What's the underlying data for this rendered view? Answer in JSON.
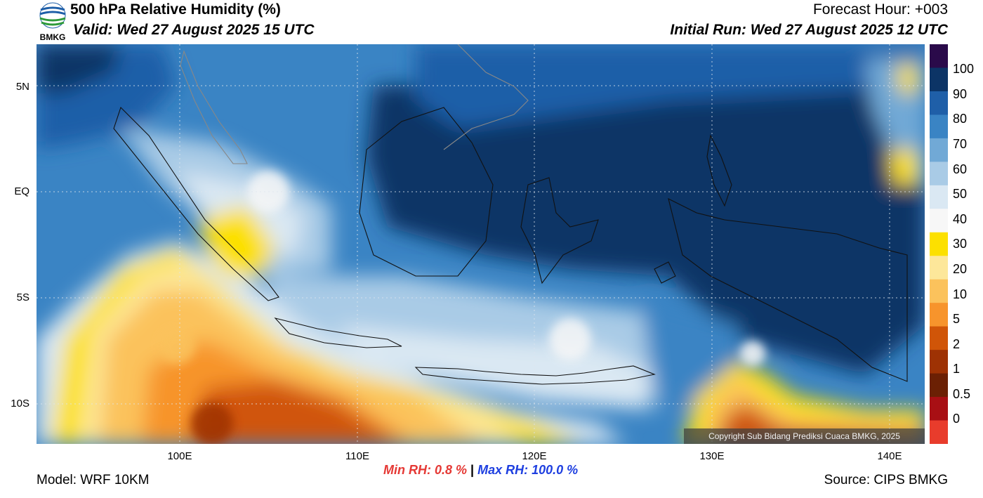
{
  "header": {
    "title": "500 hPa Relative Humidity (%)",
    "valid": "Valid: Wed 27 August 2025 15 UTC",
    "forecast_hour": "Forecast Hour: +003",
    "initial_run": "Initial Run: Wed 27 August 2025 12 UTC"
  },
  "logo": {
    "text": "BMKG",
    "icon": "bmkg-logo-icon"
  },
  "map": {
    "lat_labels": [
      "5N",
      "EQ",
      "5S",
      "10S"
    ],
    "lon_labels": [
      "100E",
      "110E",
      "120E",
      "130E",
      "140E"
    ],
    "copyright": "Copyright Sub Bidang Prediksi Cuaca BMKG, 2025"
  },
  "colorbar": {
    "labels": [
      "100",
      "90",
      "80",
      "70",
      "60",
      "50",
      "40",
      "30",
      "20",
      "10",
      "5",
      "2",
      "1",
      "0.5",
      "0"
    ],
    "colors": [
      "#2a0a4a",
      "#0c3466",
      "#1f5fa8",
      "#3a84c4",
      "#71a9d6",
      "#a9cbe6",
      "#dae8f3",
      "#f7f7f7",
      "#fce000",
      "#fde79a",
      "#fbc25c",
      "#f7942c",
      "#d05508",
      "#9e3204",
      "#6b2004",
      "#a80f14",
      "#e83c2c"
    ]
  },
  "stats": {
    "min_label": "Min RH:",
    "min_value": "0.8 %",
    "separator": "|",
    "max_label": "Max RH:",
    "max_value": "100.0 %"
  },
  "footer": {
    "model": "Model: WRF 10KM",
    "source": "Source: CIPS BMKG"
  }
}
